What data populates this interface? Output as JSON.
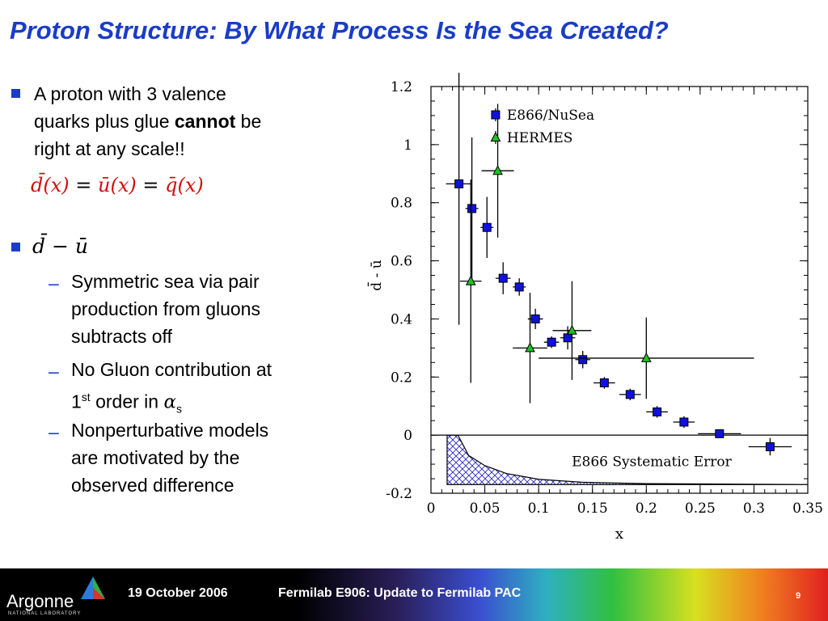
{
  "slide": {
    "title": "Proton Structure:  By What Process Is the Sea Created?",
    "bullet1_line1": "A proton with 3 valence",
    "bullet1_line2a": "quarks plus glue ",
    "bullet1_line2b": "cannot",
    "bullet1_line2c": " be",
    "bullet1_line3": "right at any scale!!",
    "equation_a": "d̄(x)",
    "equation_eq1": " = ",
    "equation_b": "ū(x)",
    "equation_eq2": " = ",
    "equation_c": "q̄(x)",
    "bullet2_expr": "d̄ − ū",
    "sub1_l1": "Symmetric sea via pair",
    "sub1_l2": "production from gluons",
    "sub1_l3": "subtracts off",
    "sub2_l1": "No Gluon contribution at",
    "sub2_l2a": "1",
    "sub2_l2sup": "st",
    "sub2_l2b": " order in ",
    "sub2_l2alpha": "α",
    "sub2_l2sub": "s",
    "sub3_l1": "Nonperturbative models",
    "sub3_l2": "are motivated by the",
    "sub3_l3": "observed difference",
    "dash": "–"
  },
  "footer": {
    "logo_text": "Argonne",
    "logo_sub": "NATIONAL LABORATORY",
    "date": "19 October 2006",
    "event": "Fermilab E906:  Update to Fermilab PAC",
    "page": "9"
  },
  "colors": {
    "title_blue": "#1a3cc8",
    "e866_blue": "#1010e0",
    "hermes_green": "#20c020",
    "equation_red": "#d01010"
  },
  "chart_data": {
    "type": "scatter",
    "xlabel": "x",
    "ylabel": "d̄ - ū",
    "xlim": [
      0,
      0.35
    ],
    "ylim": [
      -0.2,
      1.2
    ],
    "xticks": [
      "0",
      "0.05",
      "0.1",
      "0.15",
      "0.2",
      "0.25",
      "0.3",
      "0.35"
    ],
    "yticks": [
      "-0.2",
      "0",
      "0.2",
      "0.4",
      "0.6",
      "0.8",
      "1",
      "1.2"
    ],
    "legend_position": "top-left",
    "annotation": "E866 Systematic Error",
    "series": [
      {
        "name": "E866/NuSea",
        "marker": "square",
        "color": "#1010e0",
        "points": [
          {
            "x": 0.026,
            "y": 0.865,
            "xerr": 0.012,
            "yerr": 0.485
          },
          {
            "x": 0.038,
            "y": 0.78,
            "xerr": 0.006,
            "yerr": 0.245
          },
          {
            "x": 0.052,
            "y": 0.715,
            "xerr": 0.006,
            "yerr": 0.105
          },
          {
            "x": 0.067,
            "y": 0.54,
            "xerr": 0.007,
            "yerr": 0.055
          },
          {
            "x": 0.082,
            "y": 0.51,
            "xerr": 0.006,
            "yerr": 0.03
          },
          {
            "x": 0.097,
            "y": 0.4,
            "xerr": 0.007,
            "yerr": 0.035
          },
          {
            "x": 0.112,
            "y": 0.32,
            "xerr": 0.007,
            "yerr": 0.02
          },
          {
            "x": 0.127,
            "y": 0.335,
            "xerr": 0.007,
            "yerr": 0.04
          },
          {
            "x": 0.141,
            "y": 0.26,
            "xerr": 0.007,
            "yerr": 0.03
          },
          {
            "x": 0.161,
            "y": 0.18,
            "xerr": 0.01,
            "yerr": 0.02
          },
          {
            "x": 0.185,
            "y": 0.14,
            "xerr": 0.01,
            "yerr": 0.02
          },
          {
            "x": 0.21,
            "y": 0.08,
            "xerr": 0.01,
            "yerr": 0.02
          },
          {
            "x": 0.235,
            "y": 0.045,
            "xerr": 0.01,
            "yerr": 0.02
          },
          {
            "x": 0.268,
            "y": 0.005,
            "xerr": 0.02,
            "yerr": 0.01
          },
          {
            "x": 0.315,
            "y": -0.04,
            "xerr": 0.02,
            "yerr": 0.03
          }
        ]
      },
      {
        "name": "HERMES",
        "marker": "triangle",
        "color": "#20c020",
        "points": [
          {
            "x": 0.037,
            "y": 0.53,
            "xerr": 0.01,
            "yerr": 0.35
          },
          {
            "x": 0.062,
            "y": 0.91,
            "xerr": 0.015,
            "yerr": 0.23
          },
          {
            "x": 0.092,
            "y": 0.3,
            "xerr": 0.016,
            "yerr": 0.19
          },
          {
            "x": 0.131,
            "y": 0.36,
            "xerr": 0.018,
            "yerr": 0.17
          },
          {
            "x": 0.2,
            "y": 0.265,
            "xerr": 0.1,
            "yerr": 0.14
          }
        ]
      }
    ],
    "systematic_band": {
      "x": [
        0.015,
        0.025,
        0.035,
        0.05,
        0.07,
        0.1,
        0.14,
        0.2,
        0.35
      ],
      "y_low": -0.17,
      "y_high": [
        0,
        0,
        -0.07,
        -0.105,
        -0.132,
        -0.152,
        -0.162,
        -0.167,
        -0.17
      ]
    }
  }
}
